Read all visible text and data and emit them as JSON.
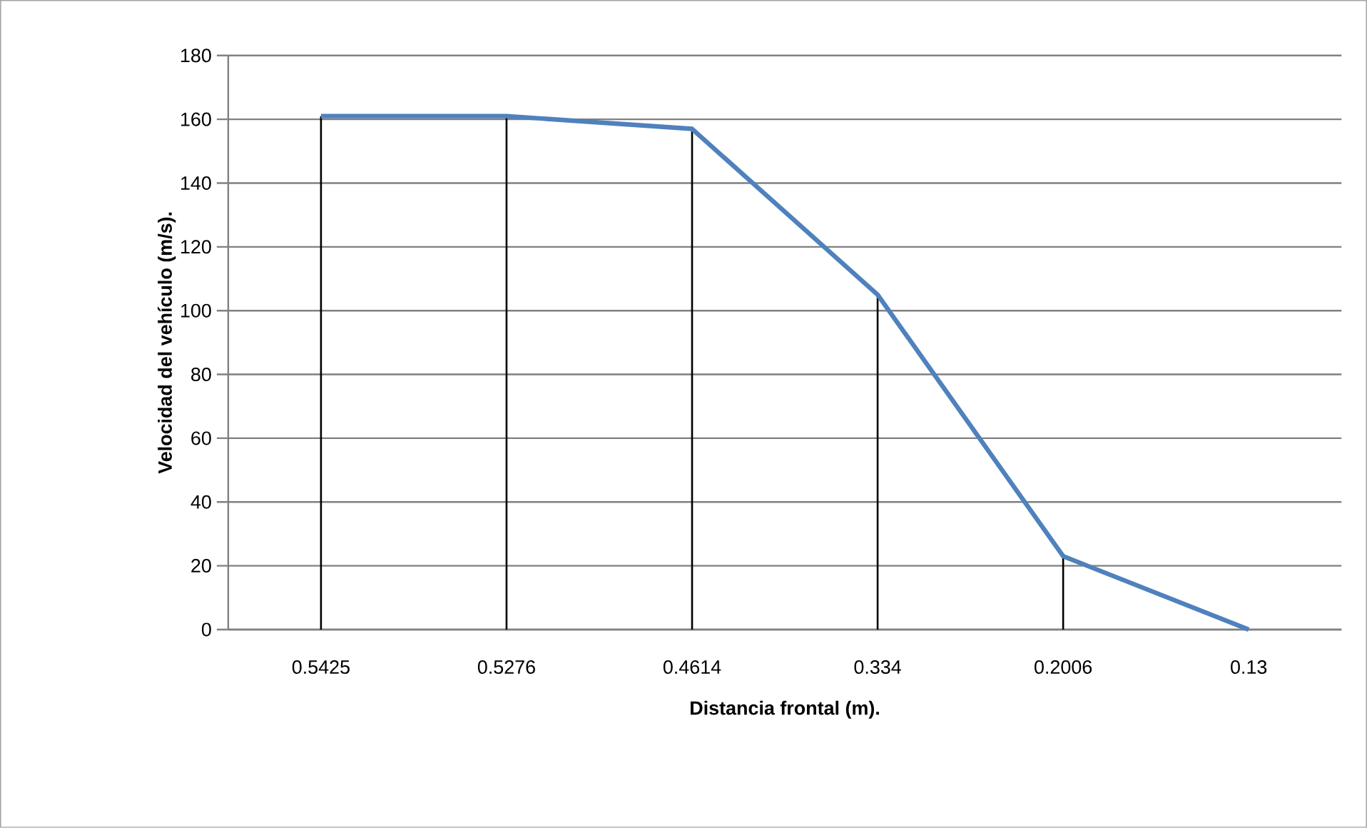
{
  "chart_data": {
    "type": "line",
    "xlabel": "Distancia frontal (m).",
    "ylabel": "Velocidad del vehículo (m/s).",
    "categories": [
      "0.5425",
      "0.5276",
      "0.4614",
      "0.334",
      "0.2006",
      "0.13"
    ],
    "series": [
      {
        "type": "bar",
        "color": "#000000",
        "values": [
          161,
          161,
          157,
          105,
          23,
          0
        ]
      },
      {
        "color": "#4f81bd",
        "values": [
          161,
          161,
          157,
          105,
          23,
          0
        ]
      }
    ],
    "ylim": [
      0,
      180
    ],
    "yticks": [
      0,
      20,
      40,
      60,
      80,
      100,
      120,
      140,
      160,
      180
    ],
    "grid": "y",
    "marker": "none",
    "line_style": "solid"
  }
}
